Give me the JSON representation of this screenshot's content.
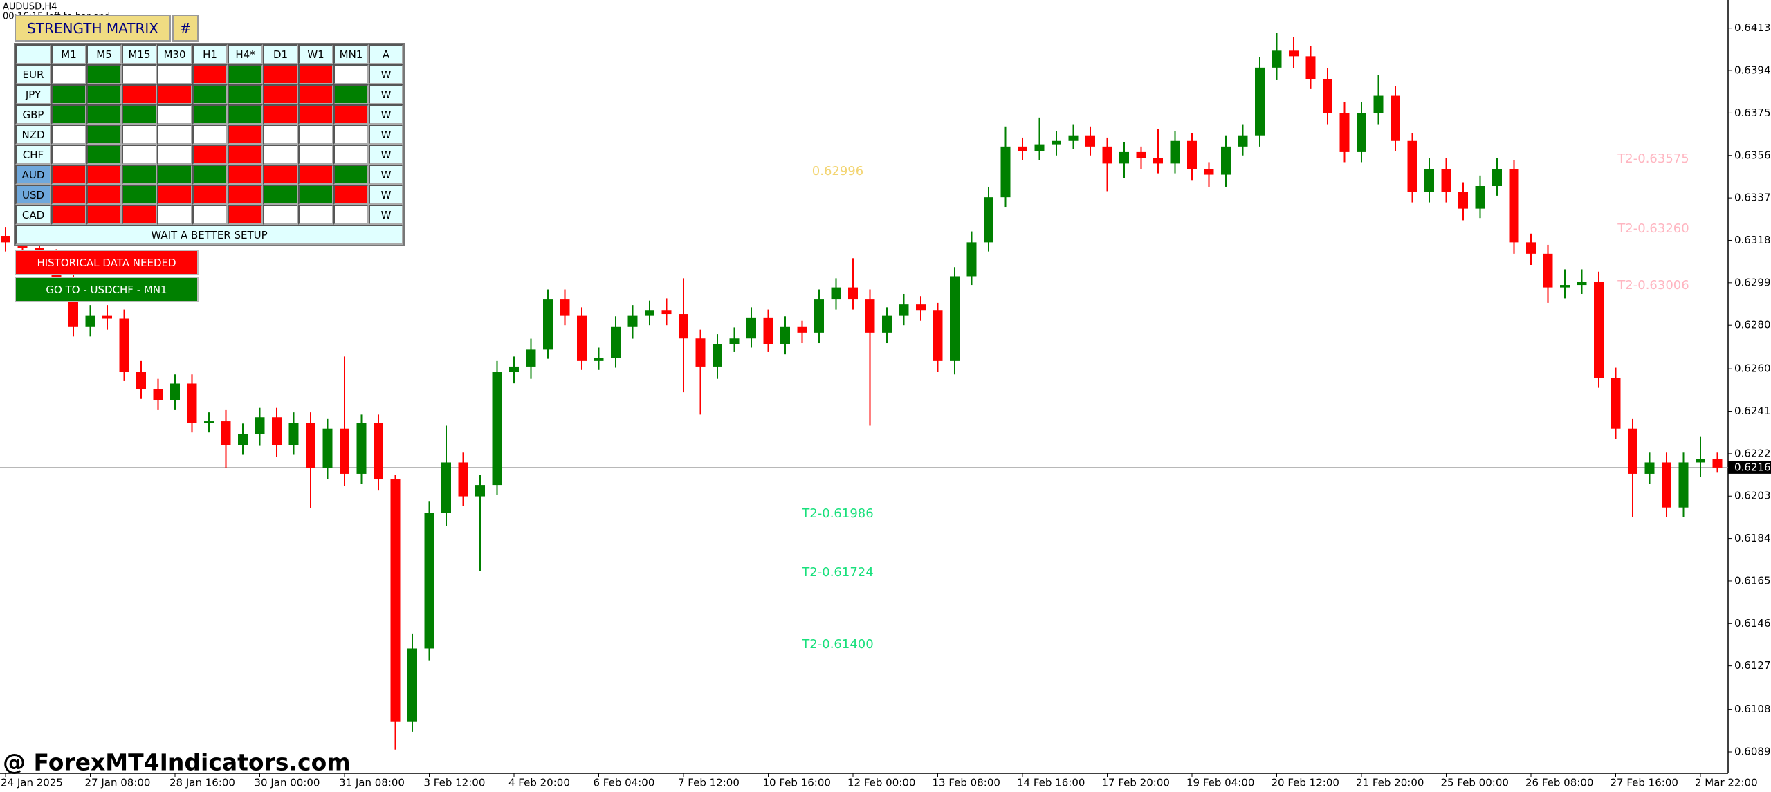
{
  "chart_data": {
    "type": "candlestick",
    "symbol_label": "AUDUSD,H4",
    "timer": "00:16:15 left to bar end",
    "categories": [
      "24 Jan 2025",
      null,
      null,
      null,
      null,
      "27 Jan 08:00",
      null,
      null,
      null,
      null,
      "28 Jan 16:00",
      null,
      null,
      null,
      null,
      "30 Jan 00:00",
      null,
      null,
      null,
      null,
      "31 Jan 08:00",
      null,
      null,
      null,
      null,
      "3 Feb 12:00",
      null,
      null,
      null,
      null,
      "4 Feb 20:00",
      null,
      null,
      null,
      null,
      "6 Feb 04:00",
      null,
      null,
      null,
      null,
      "7 Feb 12:00",
      null,
      null,
      null,
      null,
      "10 Feb 16:00",
      null,
      null,
      null,
      null,
      "12 Feb 00:00",
      null,
      null,
      null,
      null,
      "13 Feb 08:00",
      null,
      null,
      null,
      null,
      "14 Feb 16:00",
      null,
      null,
      null,
      null,
      "17 Feb 20:00",
      null,
      null,
      null,
      null,
      "19 Feb 04:00",
      null,
      null,
      null,
      null,
      "20 Feb 12:00",
      null,
      null,
      null,
      null,
      "21 Feb 20:00",
      null,
      null,
      null,
      null,
      "25 Feb 00:00",
      null,
      null,
      null,
      null,
      "26 Feb 08:00",
      null,
      null,
      null,
      null,
      "27 Feb 16:00",
      null,
      null,
      null,
      null,
      "2 Mar 22:00",
      null
    ],
    "open": [
      0.632,
      0.63171,
      0.63145,
      0.63095,
      0.62994,
      0.62792,
      0.62842,
      0.6283,
      0.6259,
      0.62514,
      0.62464,
      0.62539,
      0.62363,
      0.6237,
      0.62262,
      0.62312,
      0.62388,
      0.62262,
      0.62363,
      0.62161,
      0.62337,
      0.62135,
      0.62363,
      0.6211,
      0.61024,
      0.61353,
      0.61959,
      0.62186,
      0.62034,
      0.62085,
      0.6259,
      0.62615,
      0.62691,
      0.62918,
      0.62842,
      0.6264,
      0.62652,
      0.62792,
      0.62842,
      0.62868,
      0.6285,
      0.62741,
      0.62615,
      0.62716,
      0.62741,
      0.62832,
      0.62716,
      0.62792,
      0.62767,
      0.62918,
      0.62969,
      0.62918,
      0.62767,
      0.62842,
      0.62893,
      0.62868,
      0.6264,
      0.63019,
      0.63171,
      0.63373,
      0.636,
      0.6358,
      0.6361,
      0.63625,
      0.6365,
      0.636,
      0.63524,
      0.63575,
      0.63549,
      0.63524,
      0.63625,
      0.63499,
      0.63474,
      0.636,
      0.6365,
      0.63953,
      0.64029,
      0.64004,
      0.63903,
      0.63751,
      0.63575,
      0.63751,
      0.63827,
      0.63625,
      0.63398,
      0.63499,
      0.63398,
      0.63322,
      0.63423,
      0.63499,
      0.63171,
      0.6312,
      0.62969,
      0.6298,
      0.62994,
      0.62565,
      0.62337,
      0.62135,
      0.62186,
      0.61984,
      0.62186,
      0.622
    ],
    "high": [
      0.6324,
      0.6321,
      0.6319,
      0.6314,
      0.6304,
      0.6289,
      0.6289,
      0.6287,
      0.6264,
      0.6256,
      0.6258,
      0.6258,
      0.6241,
      0.6242,
      0.6236,
      0.6243,
      0.6243,
      0.6241,
      0.6241,
      0.6238,
      0.6266,
      0.624,
      0.624,
      0.6213,
      0.6142,
      0.6201,
      0.6235,
      0.6223,
      0.6213,
      0.6264,
      0.6266,
      0.6274,
      0.6296,
      0.6296,
      0.6288,
      0.627,
      0.6284,
      0.6289,
      0.6291,
      0.6292,
      0.6301,
      0.6278,
      0.6276,
      0.6279,
      0.6288,
      0.6287,
      0.6284,
      0.6282,
      0.6296,
      0.6301,
      0.631,
      0.6296,
      0.6288,
      0.6294,
      0.6293,
      0.629,
      0.6306,
      0.6322,
      0.6342,
      0.6369,
      0.6364,
      0.6373,
      0.6367,
      0.637,
      0.6369,
      0.6364,
      0.6362,
      0.636,
      0.6368,
      0.6367,
      0.6366,
      0.6353,
      0.6365,
      0.637,
      0.64,
      0.6411,
      0.6409,
      0.6405,
      0.6395,
      0.638,
      0.638,
      0.6392,
      0.6387,
      0.6366,
      0.6355,
      0.6355,
      0.6344,
      0.6347,
      0.6355,
      0.6354,
      0.6321,
      0.6316,
      0.6305,
      0.6305,
      0.6304,
      0.6261,
      0.6238,
      0.6223,
      0.6223,
      0.6223,
      0.623,
      0.6223
    ],
    "low": [
      0.6313,
      0.631,
      0.6305,
      0.6295,
      0.6275,
      0.6275,
      0.6278,
      0.6255,
      0.6247,
      0.6242,
      0.6242,
      0.6232,
      0.6232,
      0.6216,
      0.6222,
      0.6226,
      0.6221,
      0.6222,
      0.6198,
      0.6211,
      0.6208,
      0.6209,
      0.6206,
      0.609,
      0.6098,
      0.613,
      0.619,
      0.6199,
      0.617,
      0.6204,
      0.6254,
      0.6256,
      0.6265,
      0.628,
      0.626,
      0.626,
      0.6261,
      0.6274,
      0.628,
      0.628,
      0.625,
      0.624,
      0.6256,
      0.6268,
      0.627,
      0.6268,
      0.6267,
      0.6272,
      0.6272,
      0.6287,
      0.6287,
      0.6235,
      0.6272,
      0.628,
      0.6282,
      0.6259,
      0.6258,
      0.6298,
      0.6313,
      0.6333,
      0.6354,
      0.6354,
      0.6356,
      0.6359,
      0.6356,
      0.634,
      0.6346,
      0.635,
      0.6348,
      0.6348,
      0.6345,
      0.6342,
      0.6342,
      0.6356,
      0.636,
      0.639,
      0.6395,
      0.6386,
      0.637,
      0.6353,
      0.6353,
      0.637,
      0.6358,
      0.6335,
      0.6335,
      0.6335,
      0.6327,
      0.6328,
      0.6338,
      0.6312,
      0.6307,
      0.629,
      0.6292,
      0.6294,
      0.6252,
      0.6229,
      0.6194,
      0.6209,
      0.6194,
      0.6194,
      0.6212,
      0.6214
    ],
    "close": [
      0.63171,
      0.63145,
      0.63095,
      0.62994,
      0.62792,
      0.62842,
      0.6283,
      0.6259,
      0.62514,
      0.62464,
      0.62539,
      0.62363,
      0.6237,
      0.62262,
      0.62312,
      0.62388,
      0.62262,
      0.62363,
      0.62161,
      0.62337,
      0.62135,
      0.62363,
      0.6211,
      0.61024,
      0.61353,
      0.61959,
      0.62186,
      0.62034,
      0.62085,
      0.6259,
      0.62615,
      0.62691,
      0.62918,
      0.62842,
      0.6264,
      0.62652,
      0.62792,
      0.62842,
      0.62868,
      0.6285,
      0.62741,
      0.62615,
      0.62716,
      0.62741,
      0.62832,
      0.62716,
      0.62792,
      0.62767,
      0.62918,
      0.62969,
      0.62918,
      0.62767,
      0.62842,
      0.62893,
      0.62868,
      0.6264,
      0.63019,
      0.63171,
      0.63373,
      0.636,
      0.6358,
      0.6361,
      0.63625,
      0.6365,
      0.636,
      0.63524,
      0.63575,
      0.63549,
      0.63524,
      0.63625,
      0.63499,
      0.63474,
      0.636,
      0.6365,
      0.63953,
      0.64029,
      0.64004,
      0.63903,
      0.63751,
      0.63575,
      0.63751,
      0.63827,
      0.63625,
      0.63398,
      0.63499,
      0.63398,
      0.63322,
      0.63423,
      0.63499,
      0.63171,
      0.6312,
      0.62969,
      0.6298,
      0.62994,
      0.62565,
      0.62337,
      0.62135,
      0.62186,
      0.61984,
      0.62186,
      0.622,
      0.62163
    ],
    "up_color": "#008000",
    "down_color": "#ff0000",
    "ylim": [
      0.60794,
      0.64256
    ],
    "yticks": [
      {
        "value": 0.6413,
        "label": "0.64130"
      },
      {
        "value": 0.6394,
        "label": "0.63940"
      },
      {
        "value": 0.6375,
        "label": "0.63750"
      },
      {
        "value": 0.6356,
        "label": "0.63560"
      },
      {
        "value": 0.6337,
        "label": "0.63370"
      },
      {
        "value": 0.6318,
        "label": "0.63180"
      },
      {
        "value": 0.6299,
        "label": "0.62990"
      },
      {
        "value": 0.628,
        "label": "0.62800"
      },
      0.62605,
      0.62415,
      0.62225,
      0.62035,
      0.61845,
      0.61655,
      0.61465,
      0.61275,
      {
        "value": 0.6108,
        "label": "0.61080"
      },
      {
        "value": 0.6089,
        "label": "0.60890"
      }
    ],
    "last_price": 0.62163,
    "annotations": [
      {
        "text": "0.62996",
        "color": "#f3d572"
      },
      {
        "text": "T2-0.63575",
        "color": "#ffb6c1"
      },
      {
        "text": "T2-0.63260",
        "color": "#ffb6c1"
      },
      {
        "text": "T2-0.63006",
        "color": "#ffb6c1"
      },
      {
        "text": "T2-0.61986",
        "color": "#19e07c"
      },
      {
        "text": "T2-0.61724",
        "color": "#19e07c"
      },
      {
        "text": "T2-0.61400",
        "color": "#19e07c"
      }
    ]
  },
  "watermark": "@ ForexMT4Indicators.com",
  "panel": {
    "title": "STRENGTH MATRIX",
    "hash": "#",
    "columns": [
      "M1",
      "M5",
      "M15",
      "M30",
      "H1",
      "H4*",
      "D1",
      "W1",
      "MN1",
      "A"
    ],
    "rows": [
      {
        "label": "EUR",
        "label_color": "#e0ffff",
        "cells": [
          "#ffffff",
          "#008000",
          "#ffffff",
          "#ffffff",
          "#ff0000",
          "#008000",
          "#ff0000",
          "#ff0000",
          "#ffffff"
        ],
        "action": "W"
      },
      {
        "label": "JPY",
        "label_color": "#e0ffff",
        "cells": [
          "#008000",
          "#008000",
          "#ff0000",
          "#ff0000",
          "#008000",
          "#008000",
          "#ff0000",
          "#ff0000",
          "#008000"
        ],
        "action": "W"
      },
      {
        "label": "GBP",
        "label_color": "#e0ffff",
        "cells": [
          "#008000",
          "#008000",
          "#008000",
          "#ffffff",
          "#008000",
          "#008000",
          "#ff0000",
          "#ff0000",
          "#ff0000"
        ],
        "action": "W"
      },
      {
        "label": "NZD",
        "label_color": "#e0ffff",
        "cells": [
          "#ffffff",
          "#008000",
          "#ffffff",
          "#ffffff",
          "#ffffff",
          "#ff0000",
          "#ffffff",
          "#ffffff",
          "#ffffff"
        ],
        "action": "W"
      },
      {
        "label": "CHF",
        "label_color": "#e0ffff",
        "cells": [
          "#ffffff",
          "#008000",
          "#ffffff",
          "#ffffff",
          "#ff0000",
          "#ff0000",
          "#ffffff",
          "#ffffff",
          "#ffffff"
        ],
        "action": "W"
      },
      {
        "label": "AUD",
        "label_color": "#6fa8dc",
        "cells": [
          "#ff0000",
          "#ff0000",
          "#008000",
          "#008000",
          "#008000",
          "#ff0000",
          "#ff0000",
          "#ff0000",
          "#008000"
        ],
        "action": "W"
      },
      {
        "label": "USD",
        "label_color": "#6fa8dc",
        "cells": [
          "#ff0000",
          "#ff0000",
          "#008000",
          "#ff0000",
          "#ff0000",
          "#ff0000",
          "#008000",
          "#008000",
          "#ff0000"
        ],
        "action": "W"
      },
      {
        "label": "CAD",
        "label_color": "#e0ffff",
        "cells": [
          "#ff0000",
          "#ff0000",
          "#ff0000",
          "#ffffff",
          "#ffffff",
          "#ff0000",
          "#ffffff",
          "#ffffff",
          "#ffffff"
        ],
        "action": "W"
      }
    ],
    "status": "WAIT A BETTER SETUP",
    "warning": "HISTORICAL DATA NEEDED",
    "goto": "GO TO - USDCHF - MN1"
  }
}
